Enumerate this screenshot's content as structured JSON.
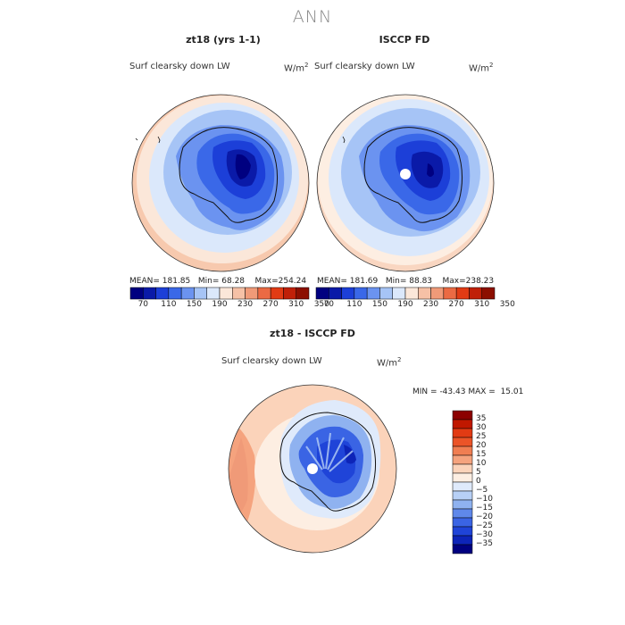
{
  "title": "ANN",
  "panels": [
    {
      "title": "zt18 (yrs 1-1)",
      "variable": "Surf clearsky down LW",
      "units": "W/m",
      "units_sup": "2",
      "stats": {
        "mean_label": "MEAN=",
        "mean": "181.85",
        "min_label": "Min=",
        "min": "68.28",
        "max_label": "Max=",
        "max": "254.24"
      }
    },
    {
      "title": "ISCCP FD",
      "variable": "Surf clearsky down LW",
      "units": "W/m",
      "units_sup": "2",
      "stats": {
        "mean_label": "MEAN=",
        "mean": "181.69",
        "min_label": "Min=",
        "min": "88.83",
        "max_label": "Max=",
        "max": "238.23"
      }
    },
    {
      "title": "zt18 - ISCCP FD",
      "variable": "Surf clearsky down LW",
      "units": "W/m",
      "units_sup": "2",
      "stats": {
        "min_label": "MIN =",
        "min": "-43.43",
        "max_label": "MAX =",
        "max": "15.01"
      }
    }
  ],
  "colorbar_top": {
    "colors": [
      "#000080",
      "#0a1aa8",
      "#1c3fd8",
      "#3a68e8",
      "#6b93f0",
      "#a6c4f6",
      "#dbe8fb",
      "#fbe7d9",
      "#f6c1a6",
      "#f09a78",
      "#eb6a43",
      "#e23b14",
      "#c02008",
      "#8c0f00"
    ],
    "labels": [
      "70",
      "110",
      "150",
      "190",
      "230",
      "270",
      "310",
      "350"
    ]
  },
  "colorbar_diff": {
    "colors": [
      "#8c0000",
      "#c01800",
      "#e23b14",
      "#eb5428",
      "#f07e52",
      "#f5a37e",
      "#fbd3ba",
      "#fdeee2",
      "#dfeafb",
      "#b7d0f6",
      "#8fb2f0",
      "#5f88ea",
      "#3a64e4",
      "#1f44d8",
      "#0d24b8",
      "#000080"
    ],
    "labels": [
      "35",
      "30",
      "25",
      "20",
      "15",
      "10",
      "5",
      "0",
      "−5",
      "−10",
      "−15",
      "−20",
      "−25",
      "−30",
      "−35"
    ]
  }
}
